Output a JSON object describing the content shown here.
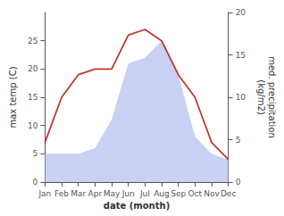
{
  "chart_data": {
    "type": "line",
    "categories": [
      "Jan",
      "Feb",
      "Mar",
      "Apr",
      "May",
      "Jun",
      "Jul",
      "Aug",
      "Sep",
      "Oct",
      "Nov",
      "Dec"
    ],
    "series": [
      {
        "type": "area",
        "color": "#b0bcee",
        "values": [
          5,
          5,
          5,
          6,
          11,
          21,
          22,
          25,
          19,
          8,
          5,
          4
        ]
      },
      {
        "type": "line",
        "color": "#c0392b",
        "values": [
          7,
          15,
          19,
          20,
          20,
          26,
          27,
          25,
          19,
          15,
          7,
          4
        ]
      }
    ],
    "x_label": "date (month)",
    "y_label": "max temp (C)",
    "y2_label": "med. precipitation\n(kg/m2)",
    "ylim": [
      0,
      30
    ],
    "yticks": [
      0,
      5,
      10,
      15,
      20,
      25
    ],
    "y2lim": [
      0,
      20
    ],
    "y2ticks": [
      0,
      5,
      10,
      15,
      20
    ],
    "grid": false
  }
}
